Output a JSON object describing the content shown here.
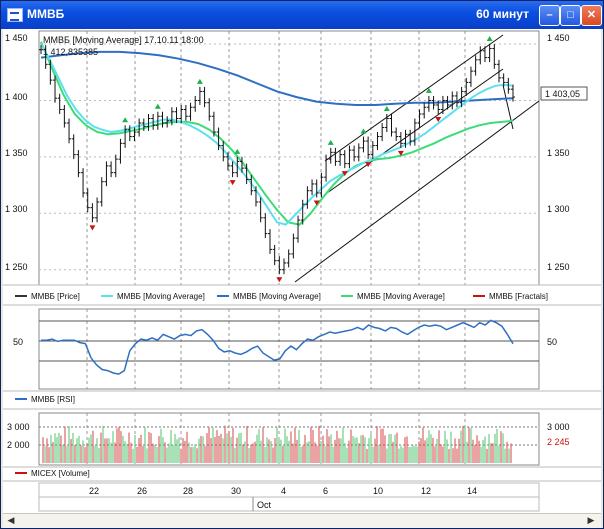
{
  "window": {
    "title": "ММВБ",
    "timeframe": "60 минут",
    "minimize_glyph": "–",
    "maximize_glyph": "□",
    "close_glyph": "✕"
  },
  "price_panel": {
    "header_line1": "ММВБ [Moving Average] 17.10.11 18:00",
    "header_line2": "1 412,835385",
    "y_ticks": [
      "1 450",
      "1 400",
      "1 350",
      "1 300",
      "1 250"
    ],
    "last_value": "1 403,05",
    "legend": [
      {
        "label": "ММВБ [Price]",
        "color": "#333333"
      },
      {
        "label": "ММВБ [Moving Average]",
        "color": "#5ee0ee"
      },
      {
        "label": "ММВБ [Moving Average]",
        "color": "#2e6fc4"
      },
      {
        "label": "ММВБ [Moving Average]",
        "color": "#3ddc7a"
      },
      {
        "label": "ММВБ [Fractals]",
        "color": "#cc1111"
      }
    ]
  },
  "rsi_panel": {
    "y_tick": "50",
    "legend": [
      {
        "label": "ММВБ [RSI]",
        "color": "#2e6fc4"
      }
    ]
  },
  "volume_panel": {
    "y_ticks": [
      "3 000",
      "2 000"
    ],
    "last_value": "2 245",
    "legend": [
      {
        "label": "MICEX [Volume]",
        "color": "#cc1111"
      }
    ]
  },
  "time_axis": {
    "day_labels": [
      "22",
      "26",
      "28",
      "30",
      "4",
      "6",
      "10",
      "12",
      "14"
    ],
    "month_label": "Oct"
  },
  "chart_data": {
    "type": "line",
    "y_range": [
      1240,
      1458
    ],
    "price": [
      1445,
      1432,
      1418,
      1402,
      1392,
      1380,
      1366,
      1352,
      1336,
      1318,
      1305,
      1296,
      1310,
      1328,
      1342,
      1336,
      1348,
      1362,
      1374,
      1368,
      1372,
      1380,
      1377,
      1384,
      1378,
      1386,
      1380,
      1382,
      1390,
      1384,
      1392,
      1386,
      1394,
      1400,
      1408,
      1398,
      1386,
      1372,
      1360,
      1350,
      1342,
      1336,
      1346,
      1340,
      1330,
      1320,
      1310,
      1296,
      1282,
      1268,
      1258,
      1250,
      1256,
      1264,
      1278,
      1294,
      1308,
      1320,
      1326,
      1318,
      1332,
      1348,
      1354,
      1346,
      1352,
      1344,
      1356,
      1350,
      1358,
      1364,
      1352,
      1360,
      1368,
      1376,
      1384,
      1372,
      1368,
      1362,
      1370,
      1364,
      1380,
      1388,
      1394,
      1400,
      1396,
      1392,
      1400,
      1396,
      1404,
      1398,
      1408,
      1416,
      1426,
      1436,
      1444,
      1438,
      1446,
      1432,
      1420,
      1416,
      1410,
      1403
    ],
    "ma_cyan": [
      1450,
      1436,
      1420,
      1404,
      1392,
      1383,
      1377,
      1374,
      1372,
      1373,
      1375,
      1377,
      1379,
      1381,
      1383,
      1383,
      1381,
      1378,
      1374,
      1369,
      1363,
      1355,
      1346,
      1337,
      1327,
      1316,
      1304,
      1292,
      1290,
      1298,
      1306,
      1314,
      1321,
      1328,
      1333,
      1337,
      1341,
      1345,
      1348,
      1352,
      1355,
      1358,
      1362,
      1366,
      1371,
      1377,
      1383,
      1389,
      1395,
      1401,
      1406,
      1410,
      1413,
      1414,
      1413
    ],
    "ma_blue": [
      1438,
      1440,
      1442,
      1443,
      1443,
      1442,
      1440,
      1437,
      1433,
      1428,
      1422,
      1415,
      1408,
      1403,
      1399,
      1397,
      1396,
      1396,
      1397,
      1398,
      1398,
      1399,
      1400,
      1401,
      1402
    ],
    "ma_green": [
      1452,
      1428,
      1405,
      1388,
      1378,
      1372,
      1370,
      1371,
      1373,
      1375,
      1378,
      1380,
      1381,
      1381,
      1379,
      1374,
      1366,
      1356,
      1344,
      1330,
      1316,
      1303,
      1292,
      1290,
      1300,
      1313,
      1325,
      1335,
      1342,
      1346,
      1348,
      1349,
      1351,
      1354,
      1358,
      1362,
      1367,
      1371,
      1375,
      1378,
      1380,
      1381,
      1382
    ],
    "rsi": [
      55,
      55,
      56,
      54,
      55,
      55,
      55,
      53,
      52,
      40,
      34,
      30,
      29,
      27,
      26,
      29,
      46,
      52,
      56,
      55,
      57,
      55,
      60,
      58,
      56,
      59,
      60,
      59,
      63,
      64,
      60,
      55,
      48,
      45,
      46,
      44,
      43,
      45,
      48,
      50,
      44,
      41,
      38,
      39,
      46,
      50,
      47,
      52,
      56,
      55,
      58,
      60,
      62,
      61,
      62,
      63,
      64,
      66,
      64,
      68,
      66,
      65,
      63,
      66,
      65,
      62,
      60,
      63,
      66,
      68,
      67,
      68,
      67,
      64,
      66,
      68,
      70,
      68,
      66,
      70,
      68,
      72,
      70,
      67,
      60,
      52
    ],
    "volume_label": "MICEX [Volume]"
  }
}
